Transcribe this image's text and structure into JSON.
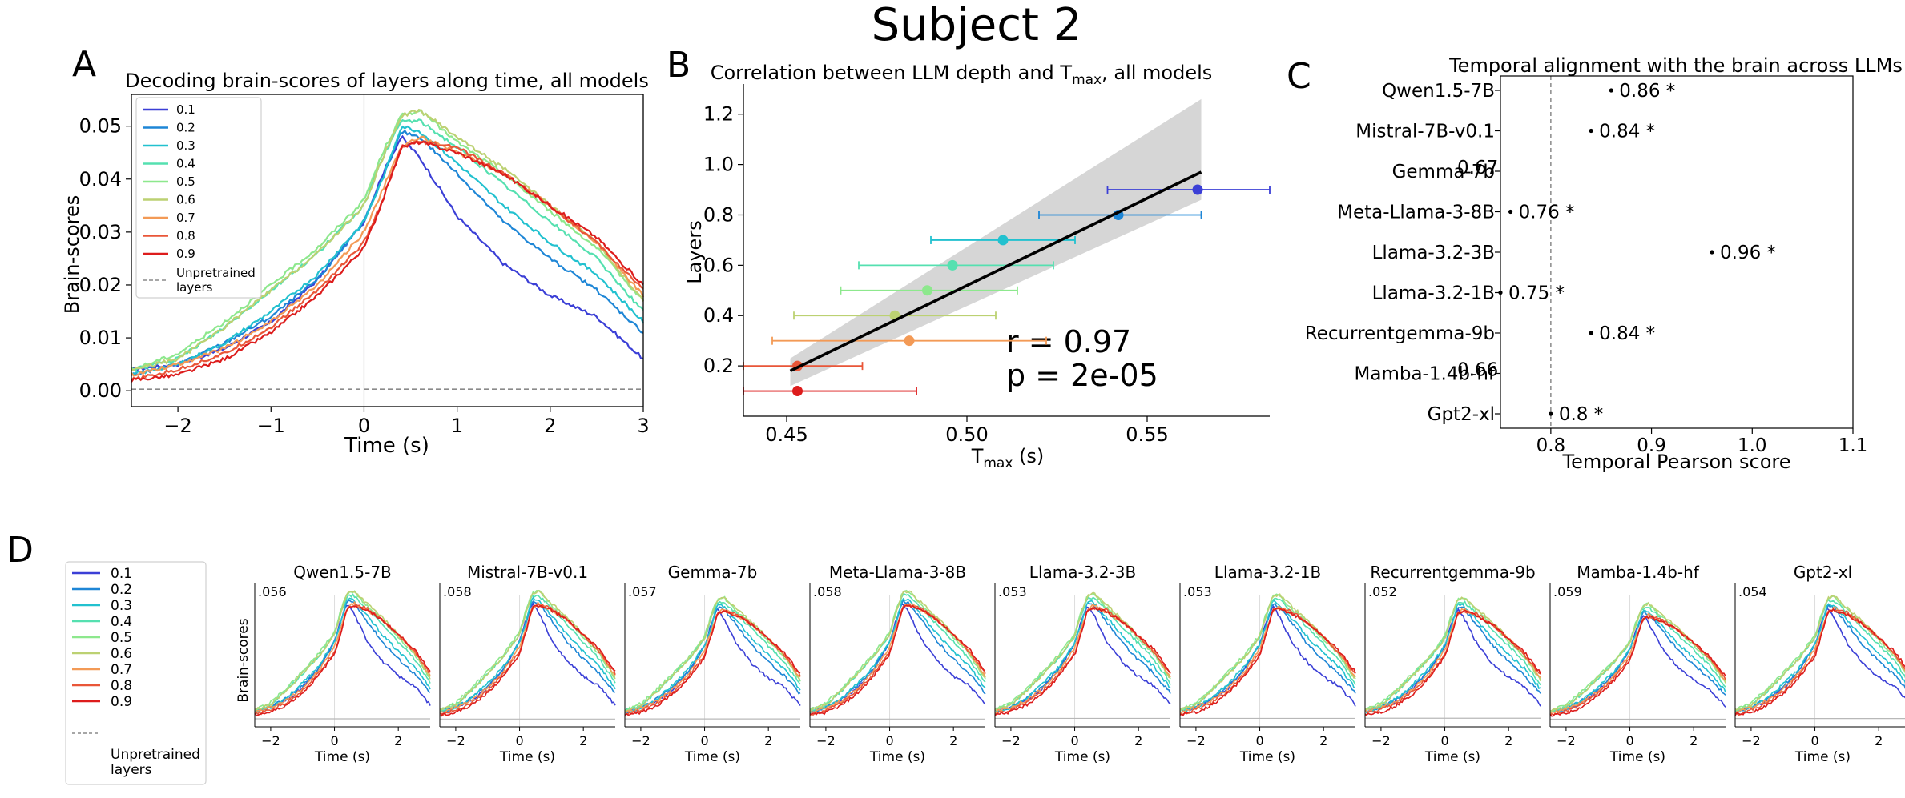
{
  "figure": {
    "title": "Subject 2",
    "panel_letters": [
      "A",
      "B",
      "C",
      "D"
    ]
  },
  "colors": {
    "layers": [
      "#3b3fd6",
      "#1e86d6",
      "#22c1cf",
      "#55e0b0",
      "#8de88d",
      "#bcd172",
      "#f39a56",
      "#e95638",
      "#dd1c1c"
    ],
    "grey_band": "#d6d6d6",
    "regression": "#000000",
    "axis": "#000000",
    "dashed": "#8a8a8a"
  },
  "chart_data": [
    {
      "id": "A",
      "type": "line",
      "title": "Decoding brain-scores of layers along time, all models",
      "xlabel": "Time (s)",
      "ylabel": "Brain-scores",
      "xlim": [
        -2.5,
        3.0
      ],
      "ylim": [
        -0.003,
        0.056
      ],
      "xticks": [
        -2,
        -1,
        0,
        1,
        2,
        3
      ],
      "xtick_labels": [
        "−2",
        "−1",
        "0",
        "1",
        "2",
        "3"
      ],
      "yticks": [
        0.0,
        0.01,
        0.02,
        0.03,
        0.04,
        0.05
      ],
      "ytick_labels": [
        "0.00",
        "0.01",
        "0.02",
        "0.03",
        "0.04",
        "0.05"
      ],
      "legend_position": "top-left",
      "legend": [
        "0.1",
        "0.2",
        "0.3",
        "0.4",
        "0.5",
        "0.6",
        "0.7",
        "0.8",
        "0.9"
      ],
      "legend_extra": "Unpretrained\nlayers",
      "series": [
        {
          "name": "0.1",
          "x": [
            -2.5,
            -2,
            -1.5,
            -1,
            -0.5,
            0,
            0.2,
            0.4,
            0.6,
            1,
            1.5,
            2,
            2.5,
            3
          ],
          "values": [
            0.004,
            0.005,
            0.008,
            0.013,
            0.021,
            0.032,
            0.041,
            0.048,
            0.044,
            0.033,
            0.024,
            0.018,
            0.014,
            0.006
          ]
        },
        {
          "name": "0.2",
          "x": [
            -2.5,
            -2,
            -1.5,
            -1,
            -0.5,
            0,
            0.2,
            0.4,
            0.6,
            1,
            1.5,
            2,
            2.5,
            3
          ],
          "values": [
            0.003,
            0.005,
            0.009,
            0.014,
            0.021,
            0.032,
            0.04,
            0.049,
            0.048,
            0.041,
            0.032,
            0.025,
            0.019,
            0.011
          ]
        },
        {
          "name": "0.3",
          "x": [
            -2.5,
            -2,
            -1.5,
            -1,
            -0.5,
            0,
            0.2,
            0.4,
            0.6,
            1,
            1.5,
            2,
            2.5,
            3
          ],
          "values": [
            0.003,
            0.005,
            0.009,
            0.015,
            0.022,
            0.032,
            0.04,
            0.05,
            0.049,
            0.043,
            0.035,
            0.028,
            0.022,
            0.013
          ]
        },
        {
          "name": "0.4",
          "x": [
            -2.5,
            -2,
            -1.5,
            -1,
            -0.5,
            0,
            0.2,
            0.4,
            0.6,
            1,
            1.5,
            2,
            2.5,
            3
          ],
          "values": [
            0.004,
            0.006,
            0.012,
            0.019,
            0.026,
            0.035,
            0.044,
            0.051,
            0.051,
            0.046,
            0.039,
            0.032,
            0.025,
            0.015
          ]
        },
        {
          "name": "0.5",
          "x": [
            -2.5,
            -2,
            -1.5,
            -1,
            -0.5,
            0,
            0.2,
            0.4,
            0.6,
            1,
            1.5,
            2,
            2.5,
            3
          ],
          "values": [
            0.004,
            0.007,
            0.013,
            0.02,
            0.027,
            0.036,
            0.045,
            0.052,
            0.053,
            0.047,
            0.041,
            0.034,
            0.027,
            0.017
          ]
        },
        {
          "name": "0.6",
          "x": [
            -2.5,
            -2,
            -1.5,
            -1,
            -0.5,
            0,
            0.2,
            0.4,
            0.6,
            1,
            1.5,
            2,
            2.5,
            3
          ],
          "values": [
            0.004,
            0.006,
            0.012,
            0.019,
            0.026,
            0.035,
            0.044,
            0.052,
            0.053,
            0.048,
            0.042,
            0.035,
            0.028,
            0.017
          ]
        },
        {
          "name": "0.7",
          "x": [
            -2.5,
            -2,
            -1.5,
            -1,
            -0.5,
            0,
            0.2,
            0.4,
            0.6,
            1,
            1.5,
            2,
            2.5,
            3
          ],
          "values": [
            0.003,
            0.005,
            0.008,
            0.013,
            0.02,
            0.03,
            0.038,
            0.046,
            0.048,
            0.045,
            0.041,
            0.035,
            0.028,
            0.018
          ]
        },
        {
          "name": "0.8",
          "x": [
            -2.5,
            -2,
            -1.5,
            -1,
            -0.5,
            0,
            0.2,
            0.4,
            0.6,
            1,
            1.5,
            2,
            2.5,
            3
          ],
          "values": [
            0.002,
            0.004,
            0.007,
            0.012,
            0.019,
            0.028,
            0.036,
            0.046,
            0.047,
            0.046,
            0.041,
            0.035,
            0.028,
            0.019
          ]
        },
        {
          "name": "0.9",
          "x": [
            -2.5,
            -2,
            -1.5,
            -1,
            -0.5,
            0,
            0.2,
            0.4,
            0.6,
            1,
            1.5,
            2,
            2.5,
            3
          ],
          "values": [
            0.002,
            0.003,
            0.006,
            0.011,
            0.018,
            0.027,
            0.036,
            0.046,
            0.047,
            0.045,
            0.041,
            0.035,
            0.029,
            0.02
          ]
        },
        {
          "name": "Unpretrained layers",
          "x": [
            -2.5,
            3
          ],
          "values": [
            0.0003,
            0.0003
          ]
        }
      ]
    },
    {
      "id": "B",
      "type": "scatter",
      "title": "Correlation between LLM depth and T_max, all models",
      "title_main": "Correlation between LLM depth and T",
      "title_sub": "max",
      "title_tail": ", all models",
      "xlabel_main": "T",
      "xlabel_sub": "max",
      "xlabel_tail": " (s)",
      "ylabel": "Layers",
      "xlim": [
        0.438,
        0.584
      ],
      "ylim": [
        0.0,
        1.32
      ],
      "xticks": [
        0.45,
        0.5,
        0.55
      ],
      "xtick_labels": [
        "0.45",
        "0.50",
        "0.55"
      ],
      "yticks": [
        0.2,
        0.4,
        0.6,
        0.8,
        1.0,
        1.2
      ],
      "ytick_labels": [
        "0.2",
        "0.4",
        "0.6",
        "0.8",
        "1.0",
        "1.2"
      ],
      "points": [
        {
          "layer": "0.9",
          "x": 0.453,
          "y": 0.1,
          "xerr": [
            0.438,
            0.486
          ]
        },
        {
          "layer": "0.8",
          "x": 0.453,
          "y": 0.2,
          "xerr": [
            0.438,
            0.471
          ]
        },
        {
          "layer": "0.7",
          "x": 0.484,
          "y": 0.3,
          "xerr": [
            0.446,
            0.522
          ]
        },
        {
          "layer": "0.6",
          "x": 0.48,
          "y": 0.4,
          "xerr": [
            0.452,
            0.508
          ]
        },
        {
          "layer": "0.5",
          "x": 0.489,
          "y": 0.5,
          "xerr": [
            0.465,
            0.514
          ]
        },
        {
          "layer": "0.4",
          "x": 0.496,
          "y": 0.6,
          "xerr": [
            0.47,
            0.524
          ]
        },
        {
          "layer": "0.3",
          "x": 0.51,
          "y": 0.7,
          "xerr": [
            0.49,
            0.53
          ]
        },
        {
          "layer": "0.2",
          "x": 0.542,
          "y": 0.8,
          "xerr": [
            0.52,
            0.565
          ]
        },
        {
          "layer": "0.1",
          "x": 0.564,
          "y": 0.9,
          "xerr": [
            0.539,
            0.584
          ]
        }
      ],
      "regression": {
        "x": [
          0.451,
          0.565
        ],
        "y": [
          0.18,
          0.97
        ]
      },
      "confidence_band": {
        "x": [
          0.451,
          0.565
        ],
        "lower": [
          0.12,
          0.86
        ],
        "upper": [
          0.23,
          1.26
        ]
      },
      "annotation_r": "r = 0.97",
      "annotation_p": "p = 2e-05"
    },
    {
      "id": "C",
      "type": "scatter",
      "title": "Temporal alignment with the brain across LLMs",
      "xlabel": "Temporal Pearson score",
      "xlim": [
        0.75,
        1.1
      ],
      "xticks": [
        0.8,
        0.9,
        1.0,
        1.1
      ],
      "xtick_labels": [
        "0.8",
        "0.9",
        "1.0",
        "1.1"
      ],
      "dashed_x": 0.8,
      "models": [
        "Qwen1.5-7B",
        "Mistral-7B-v0.1",
        "Gemma-7b",
        "Meta-Llama-3-8B",
        "Llama-3.2-3B",
        "Llama-3.2-1B",
        "Recurrentgemma-9b",
        "Mamba-1.4b-hf",
        "Gpt2-xl"
      ],
      "scores": [
        0.86,
        0.84,
        0.67,
        0.76,
        0.96,
        0.75,
        0.84,
        0.66,
        0.8
      ],
      "labels": [
        "0.86 *",
        "0.84 *",
        "0.67",
        "0.76 *",
        "0.96 *",
        "0.75 *",
        "0.84 *",
        "0.66",
        "0.8 *"
      ]
    },
    {
      "id": "D",
      "type": "line",
      "xlabel": "Time (s)",
      "ylabel": "Brain-scores",
      "xlim": [
        -2.5,
        3.0
      ],
      "xticks": [
        -2,
        0,
        2
      ],
      "xtick_labels": [
        "−2",
        "0",
        "2"
      ],
      "legend_position": "left",
      "legend": [
        "0.1",
        "0.2",
        "0.3",
        "0.4",
        "0.5",
        "0.6",
        "0.7",
        "0.8",
        "0.9"
      ],
      "legend_extra": "Unpretrained\nlayers",
      "shared_x": [
        -2.5,
        -2,
        -1.5,
        -1,
        -0.5,
        0,
        0.2,
        0.4,
        0.6,
        1,
        1.5,
        2,
        2.5,
        3
      ],
      "panels": [
        {
          "title": "Qwen1.5-7B",
          "ymax_label": ".056",
          "ymax": 0.056,
          "peak_scale": 1.0
        },
        {
          "title": "Mistral-7B-v0.1",
          "ymax_label": ".058",
          "ymax": 0.058,
          "peak_scale": 1.0
        },
        {
          "title": "Gemma-7b",
          "ymax_label": ".057",
          "ymax": 0.057,
          "peak_scale": 0.95
        },
        {
          "title": "Meta-Llama-3-8B",
          "ymax_label": ".058",
          "ymax": 0.058,
          "peak_scale": 1.0
        },
        {
          "title": "Llama-3.2-3B",
          "ymax_label": ".053",
          "ymax": 0.053,
          "peak_scale": 0.98
        },
        {
          "title": "Llama-3.2-1B",
          "ymax_label": ".053",
          "ymax": 0.053,
          "peak_scale": 0.97
        },
        {
          "title": "Recurrentgemma-9b",
          "ymax_label": ".052",
          "ymax": 0.052,
          "peak_scale": 0.95
        },
        {
          "title": "Mamba-1.4b-hf",
          "ymax_label": ".059",
          "ymax": 0.059,
          "peak_scale": 0.9
        },
        {
          "title": "Gpt2-xl",
          "ymax_label": ".054",
          "ymax": 0.054,
          "peak_scale": 0.96
        }
      ]
    }
  ]
}
